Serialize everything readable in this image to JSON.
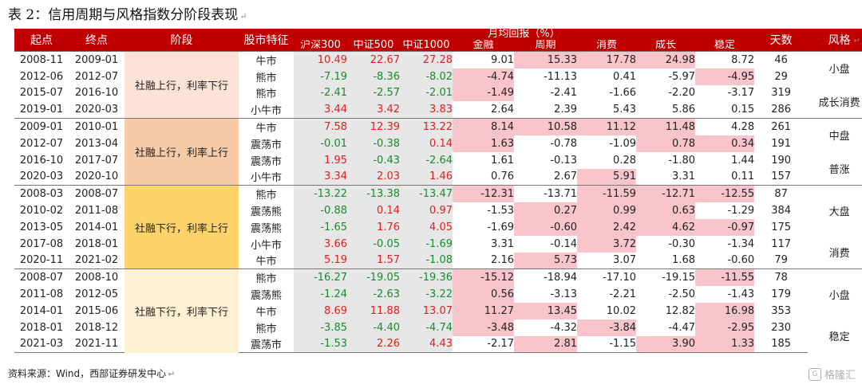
{
  "title": "表 2：信用周期与风格指数分阶段表现",
  "paragraph_mark": "↵",
  "headers": {
    "start": "起点",
    "end": "终点",
    "phase": "阶段",
    "market": "股市特征",
    "monthly_return": "月均回报（%）",
    "days": "天数",
    "style": "风格",
    "indices": [
      "沪深300",
      "中证500",
      "中证1000",
      "金融",
      "周期",
      "消费",
      "成长",
      "稳定"
    ]
  },
  "groups": [
    {
      "phase": "社融上行，利率下行",
      "rows": [
        {
          "start": "2008-11",
          "end": "2009-01",
          "market": "牛市",
          "values": [
            "10.49",
            "22.67",
            "27.28",
            "9.01",
            "15.33",
            "17.78",
            "24.98",
            "8.72"
          ],
          "days": "46"
        },
        {
          "start": "2012-06",
          "end": "2012-07",
          "market": "熊市",
          "values": [
            "-7.19",
            "-8.36",
            "-8.02",
            "-4.74",
            "-11.13",
            "0.41",
            "-5.97",
            "-4.95"
          ],
          "days": "29"
        },
        {
          "start": "2015-07",
          "end": "2016-10",
          "market": "熊市",
          "values": [
            "-2.41",
            "-2.57",
            "-2.01",
            "-1.49",
            "-2.41",
            "-1.66",
            "-2.20",
            "-3.17"
          ],
          "days": "319"
        },
        {
          "start": "2019-01",
          "end": "2020-03",
          "market": "小牛市",
          "values": [
            "3.44",
            "3.42",
            "3.83",
            "2.64",
            "2.39",
            "5.43",
            "5.86",
            "0.15"
          ],
          "days": "286"
        }
      ],
      "styles": [
        "小盘",
        "成长消费"
      ]
    },
    {
      "phase": "社融上行，利率上行",
      "rows": [
        {
          "start": "2009-01",
          "end": "2010-01",
          "market": "牛市",
          "values": [
            "7.58",
            "12.39",
            "13.22",
            "8.14",
            "10.58",
            "11.12",
            "11.48",
            "4.28"
          ],
          "days": "261"
        },
        {
          "start": "2012-07",
          "end": "2013-04",
          "market": "震荡市",
          "values": [
            "-0.01",
            "-0.38",
            "0.14",
            "1.63",
            "-0.78",
            "-1.09",
            "0.78",
            "0.34"
          ],
          "days": "191"
        },
        {
          "start": "2016-10",
          "end": "2017-07",
          "market": "震荡市",
          "values": [
            "1.95",
            "-0.43",
            "-2.64",
            "1.61",
            "-0.13",
            "0.28",
            "-1.80",
            "1.44"
          ],
          "days": "190"
        },
        {
          "start": "2020-03",
          "end": "2020-10",
          "market": "小牛市",
          "values": [
            "3.34",
            "2.03",
            "1.46",
            "0.76",
            "2.67",
            "5.91",
            "3.31",
            "0.11"
          ],
          "days": "157"
        }
      ],
      "styles": [
        "中盘",
        "普涨"
      ]
    },
    {
      "phase": "社融下行，利率上行",
      "rows": [
        {
          "start": "2008-03",
          "end": "2008-07",
          "market": "熊市",
          "values": [
            "-13.22",
            "-13.38",
            "-13.47",
            "-12.31",
            "-13.71",
            "-11.59",
            "-12.71",
            "-12.55"
          ],
          "days": "87"
        },
        {
          "start": "2010-02",
          "end": "2011-08",
          "market": "震荡熊",
          "values": [
            "-0.88",
            "0.14",
            "0.97",
            "-1.53",
            "0.27",
            "0.99",
            "0.63",
            "-1.29"
          ],
          "days": "384"
        },
        {
          "start": "2013-05",
          "end": "2014-01",
          "market": "震荡熊",
          "values": [
            "-1.65",
            "1.76",
            "4.05",
            "-1.69",
            "-0.60",
            "2.42",
            "4.62",
            "-0.97"
          ],
          "days": "175"
        },
        {
          "start": "2017-08",
          "end": "2018-01",
          "market": "小牛市",
          "values": [
            "3.66",
            "-0.05",
            "-1.69",
            "3.31",
            "-0.14",
            "3.72",
            "-0.30",
            "-1.34"
          ],
          "days": "117"
        },
        {
          "start": "2020-11",
          "end": "2021-02",
          "market": "牛市",
          "values": [
            "5.19",
            "1.57",
            "-1.08",
            "2.16",
            "5.73",
            "3.07",
            "1.68",
            "-0.60"
          ],
          "days": "79"
        }
      ],
      "styles": [
        "大盘",
        "消费"
      ]
    },
    {
      "phase": "社融下行，利率下行",
      "rows": [
        {
          "start": "2008-07",
          "end": "2008-10",
          "market": "熊市",
          "values": [
            "-16.27",
            "-19.05",
            "-19.36",
            "-15.12",
            "-18.94",
            "-17.10",
            "-19.15",
            "-11.55"
          ],
          "days": "78"
        },
        {
          "start": "2011-08",
          "end": "2012-05",
          "market": "震荡熊",
          "values": [
            "-1.24",
            "-2.63",
            "-3.22",
            "0.56",
            "-3.13",
            "-2.21",
            "-2.50",
            "-1.43"
          ],
          "days": "179"
        },
        {
          "start": "2014-01",
          "end": "2015-06",
          "market": "牛市",
          "values": [
            "8.69",
            "11.88",
            "13.07",
            "11.27",
            "13.45",
            "10.02",
            "12.82",
            "16.98"
          ],
          "days": "353"
        },
        {
          "start": "2018-01",
          "end": "2018-12",
          "market": "熊市",
          "values": [
            "-3.85",
            "-4.40",
            "-4.74",
            "-3.48",
            "-4.32",
            "-3.84",
            "-4.47",
            "-2.95"
          ],
          "days": "230"
        },
        {
          "start": "2021-03",
          "end": "2021-11",
          "market": "震荡市",
          "values": [
            "-1.53",
            "2.26",
            "4.43",
            "-2.17",
            "2.81",
            "-1.15",
            "3.90",
            "1.33"
          ],
          "days": "185"
        }
      ],
      "styles": [
        "小盘",
        "稳定"
      ]
    }
  ],
  "highlight_color": "#f9c4cb",
  "header_color": "#c00000",
  "index_bg_color": "#e7e7e7",
  "phase_colors": [
    "#fde3d6",
    "#f7caa8",
    "#fdd46b",
    "#fef0d2"
  ],
  "value_colors": {
    "positive": "#e02020",
    "negative": "#1a8a2e"
  },
  "highlights": [
    [
      [
        0,
        4
      ],
      [
        0,
        5
      ],
      [
        0,
        6
      ],
      [
        1,
        3
      ],
      [
        1,
        7
      ],
      [
        2,
        3
      ]
    ],
    [
      [
        0,
        3
      ],
      [
        0,
        4
      ],
      [
        0,
        5
      ],
      [
        0,
        6
      ],
      [
        1,
        3
      ],
      [
        1,
        6
      ],
      [
        1,
        7
      ],
      [
        3,
        5
      ]
    ],
    [
      [
        0,
        3
      ],
      [
        0,
        5
      ],
      [
        0,
        6
      ],
      [
        0,
        7
      ],
      [
        1,
        4
      ],
      [
        1,
        5
      ],
      [
        1,
        6
      ],
      [
        2,
        4
      ],
      [
        2,
        5
      ],
      [
        2,
        6
      ],
      [
        2,
        7
      ],
      [
        3,
        5
      ],
      [
        4,
        4
      ]
    ],
    [
      [
        0,
        3
      ],
      [
        0,
        7
      ],
      [
        1,
        3
      ],
      [
        2,
        3
      ],
      [
        2,
        4
      ],
      [
        2,
        7
      ],
      [
        3,
        3
      ],
      [
        3,
        5
      ],
      [
        3,
        7
      ],
      [
        4,
        4
      ],
      [
        4,
        6
      ],
      [
        4,
        7
      ]
    ]
  ],
  "source": "资料来源：Wind，西部证券研发中心",
  "watermark": "格隆汇",
  "watermark_icon": "gelonghui-logo-icon"
}
